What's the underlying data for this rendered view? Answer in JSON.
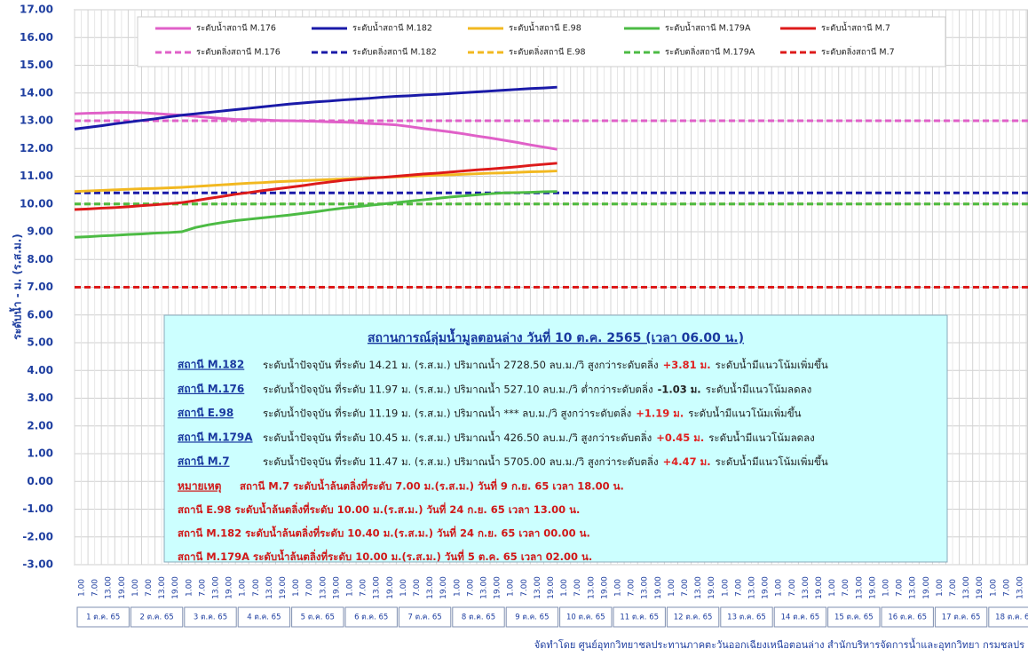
{
  "chart_data": {
    "type": "line",
    "y_label": "ระดับน้ำ - ม. (ร.ส.ม.)",
    "ylim": [
      -3,
      17
    ],
    "yticks": [
      {
        "value": -3,
        "label": "-3.00"
      },
      {
        "value": -2,
        "label": "-2.00"
      },
      {
        "value": -1,
        "label": "-1.00"
      },
      {
        "value": 0,
        "label": "0.00"
      },
      {
        "value": 1,
        "label": "1.00"
      },
      {
        "value": 2,
        "label": "2.00"
      },
      {
        "value": 3,
        "label": "3.00"
      },
      {
        "value": 4,
        "label": "4.00"
      },
      {
        "value": 5,
        "label": "5.00"
      },
      {
        "value": 6,
        "label": "6.00"
      },
      {
        "value": 7,
        "label": "7.00"
      },
      {
        "value": 8,
        "label": "8.00"
      },
      {
        "value": 9,
        "label": "9.00"
      },
      {
        "value": 10,
        "label": "10.00"
      },
      {
        "value": 11,
        "label": "11.00"
      },
      {
        "value": 12,
        "label": "12.00"
      },
      {
        "value": 13,
        "label": "13.00"
      },
      {
        "value": 14,
        "label": "14.00"
      },
      {
        "value": 15,
        "label": "15.00"
      },
      {
        "value": 16,
        "label": "16.00"
      },
      {
        "value": 17,
        "label": "17.00"
      }
    ],
    "grid": true,
    "hour_ticks": [
      "1.00",
      "7.00",
      "13.00",
      "19.00"
    ],
    "days": [
      "1 ต.ค. 65",
      "2 ต.ค. 65",
      "3 ต.ค. 65",
      "4 ต.ค. 65",
      "5 ต.ค. 65",
      "6 ต.ค. 65",
      "7 ต.ค. 65",
      "8 ต.ค. 65",
      "9 ต.ค. 65",
      "10 ต.ค. 65",
      "11 ต.ค. 65",
      "12 ต.ค. 65",
      "13 ต.ค. 65",
      "14 ต.ค. 65",
      "15 ต.ค. 65",
      "16 ต.ค. 65",
      "17 ต.ค. 65",
      "18 ต.ค. 65"
    ],
    "series": [
      {
        "name": "ระดับน้ำสถานี M.176",
        "color": "#e060c8",
        "values": [
          13.25,
          13.27,
          13.28,
          13.3,
          13.3,
          13.29,
          13.26,
          13.23,
          13.2,
          13.16,
          13.12,
          13.08,
          13.05,
          13.04,
          13.03,
          13.01,
          13.0,
          12.99,
          12.98,
          12.96,
          12.95,
          12.93,
          12.9,
          12.88,
          12.85,
          12.79,
          12.72,
          12.66,
          12.6,
          12.53,
          12.45,
          12.38,
          12.3,
          12.22,
          12.13,
          12.05,
          11.97
        ]
      },
      {
        "name": "ระดับน้ำสถานี M.182",
        "color": "#1a1aa8",
        "values": [
          12.7,
          12.76,
          12.82,
          12.89,
          12.95,
          13.01,
          13.07,
          13.14,
          13.2,
          13.25,
          13.3,
          13.35,
          13.4,
          13.45,
          13.5,
          13.55,
          13.6,
          13.64,
          13.68,
          13.71,
          13.75,
          13.78,
          13.81,
          13.85,
          13.88,
          13.9,
          13.93,
          13.95,
          13.98,
          14.01,
          14.04,
          14.07,
          14.1,
          14.13,
          14.16,
          14.18,
          14.21
        ]
      },
      {
        "name": "ระดับน้ำสถานี E.98",
        "color": "#f2b820",
        "values": [
          10.45,
          10.47,
          10.49,
          10.51,
          10.53,
          10.55,
          10.56,
          10.58,
          10.6,
          10.63,
          10.66,
          10.69,
          10.72,
          10.75,
          10.77,
          10.8,
          10.82,
          10.84,
          10.86,
          10.88,
          10.9,
          10.92,
          10.94,
          10.96,
          10.98,
          11.0,
          11.02,
          11.04,
          11.05,
          11.07,
          11.09,
          11.11,
          11.12,
          11.14,
          11.16,
          11.17,
          11.19
        ]
      },
      {
        "name": "ระดับน้ำสถานี M.179A",
        "color": "#4cbb44",
        "values": [
          8.8,
          8.82,
          8.85,
          8.87,
          8.9,
          8.92,
          8.95,
          8.97,
          9.0,
          9.15,
          9.25,
          9.33,
          9.4,
          9.45,
          9.5,
          9.55,
          9.6,
          9.66,
          9.72,
          9.79,
          9.85,
          9.9,
          9.95,
          10.0,
          10.05,
          10.1,
          10.15,
          10.2,
          10.25,
          10.29,
          10.33,
          10.37,
          10.4,
          10.41,
          10.42,
          10.44,
          10.45
        ]
      },
      {
        "name": "ระดับน้ำสถานี M.7",
        "color": "#dd1a1a",
        "values": [
          9.8,
          9.82,
          9.85,
          9.87,
          9.9,
          9.94,
          9.97,
          10.01,
          10.05,
          10.12,
          10.2,
          10.27,
          10.35,
          10.41,
          10.48,
          10.54,
          10.6,
          10.66,
          10.73,
          10.79,
          10.85,
          10.89,
          10.93,
          10.96,
          11.0,
          11.04,
          11.08,
          11.11,
          11.15,
          11.19,
          11.23,
          11.26,
          11.3,
          11.34,
          11.39,
          11.43,
          11.47
        ]
      }
    ],
    "bank_levels": [
      {
        "name": "ระดับตลิ่งสถานี M.176",
        "color": "#e060c8",
        "value": 13.0
      },
      {
        "name": "ระดับตลิ่งสถานี M.182",
        "color": "#1a1aa8",
        "value": 10.4
      },
      {
        "name": "ระดับตลิ่งสถานี E.98",
        "color": "#f2b820",
        "value": 10.0
      },
      {
        "name": "ระดับตลิ่งสถานี M.179A",
        "color": "#4cbb44",
        "value": 10.0
      },
      {
        "name": "ระดับตลิ่งสถานี M.7",
        "color": "#dd1a1a",
        "value": 7.0
      }
    ],
    "info_box": {
      "title": "สถานการณ์ลุ่มน้ำมูลตอนล่าง  วันที่ 10 ต.ค. 2565 (เวลา 06.00 น.)",
      "rows": [
        {
          "station": "สถานี M.182",
          "text": "ระดับน้ำปัจจุบัน ที่ระดับ 14.21 ม. (ร.ส.ม.) ปริมาณน้ำ 2728.50 ลบ.ม./วิ  สูงกว่าระดับตลิ่ง",
          "diff": "+3.81 ม.",
          "diff_color": "#e02020",
          "trend": "ระดับน้ำมีแนวโน้มเพิ่มขึ้น"
        },
        {
          "station": "สถานี M.176",
          "text": "ระดับน้ำปัจจุบัน ที่ระดับ 11.97 ม. (ร.ส.ม.) ปริมาณน้ำ 527.10  ลบ.ม./วิ  ต่ำกว่าระดับตลิ่ง",
          "diff": "-1.03 ม.",
          "diff_color": "#222222",
          "trend": "ระดับน้ำมีแนวโน้มลดลง"
        },
        {
          "station": "สถานี E.98",
          "text": "ระดับน้ำปัจจุบัน ที่ระดับ 11.19 ม. (ร.ส.ม.) ปริมาณน้ำ ***        ลบ.ม./วิ สูงกว่าระดับตลิ่ง",
          "diff": "+1.19 ม.",
          "diff_color": "#e02020",
          "trend": "ระดับน้ำมีแนวโน้มเพิ่มขึ้น"
        },
        {
          "station": "สถานี M.179A",
          "text": "ระดับน้ำปัจจุบัน ที่ระดับ 10.45 ม. (ร.ส.ม.) ปริมาณน้ำ  426.50   ลบ.ม./วิ สูงกว่าระดับตลิ่ง",
          "diff": "+0.45 ม.",
          "diff_color": "#e02020",
          "trend": "ระดับน้ำมีแนวโน้มลดลง"
        },
        {
          "station": "สถานี M.7",
          "text": "ระดับน้ำปัจจุบัน ที่ระดับ 11.47 ม. (ร.ส.ม.) ปริมาณน้ำ  5705.00 ลบ.ม./วิ  สูงกว่าระดับตลิ่ง",
          "diff": "+4.47 ม.",
          "diff_color": "#e02020",
          "trend": "ระดับน้ำมีแนวโน้มเพิ่มขึ้น"
        }
      ],
      "notes_label": "หมายเหตุ",
      "notes": [
        "สถานี M.7 ระดับน้ำล้นตลิ่งที่ระดับ 7.00 ม.(ร.ส.ม.) วันที่ 9 ก.ย. 65 เวลา 18.00 น.",
        "สถานี E.98 ระดับน้ำล้นตลิ่งที่ระดับ 10.00 ม.(ร.ส.ม.) วันที่ 24 ก.ย. 65 เวลา 13.00 น.",
        "สถานี M.182 ระดับน้ำล้นตลิ่งที่ระดับ 10.40 ม.(ร.ส.ม.) วันที่ 24 ก.ย. 65 เวลา 00.00 น.",
        "สถานี M.179A ระดับน้ำล้นตลิ่งที่ระดับ 10.00 ม.(ร.ส.ม.) วันที่ 5 ต.ค. 65 เวลา 02.00 น."
      ]
    },
    "footer": "จัดทำโดย ศูนย์อุทกวิทยาชลประทานภาคตะวันออกเฉียงเหนือตอนล่าง สำนักบริหารจัดการน้ำและอุทกวิทยา กรมชลปร"
  }
}
